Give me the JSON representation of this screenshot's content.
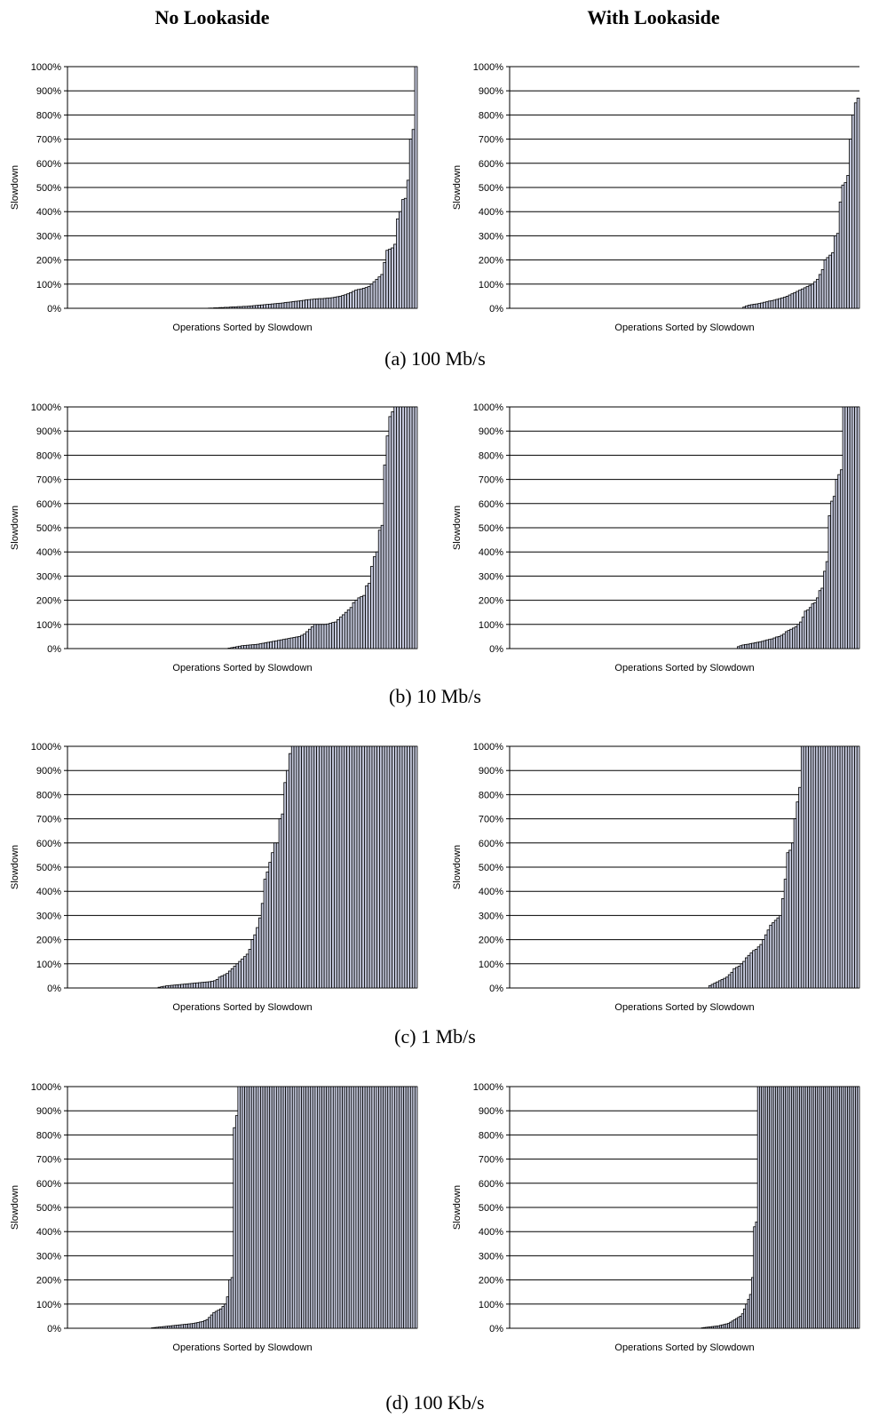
{
  "figure": {
    "column_titles": [
      "No Lookaside",
      "With Lookaside"
    ],
    "row_captions": [
      "(a) 100 Mb/s",
      "(b) 10 Mb/s",
      "(c) 1 Mb/s",
      "(d) 100 Kb/s"
    ]
  },
  "colors": {
    "bar_fill": "#c4c8dc",
    "bar_edge": "#000000",
    "grid": "#000000"
  },
  "chart_data": [
    {
      "type": "bar",
      "row": "(a) 100 Mb/s",
      "column": "No Lookaside",
      "xlabel": "Operations Sorted by Slowdown",
      "ylabel": "Slowdown",
      "ylim": [
        0,
        1000
      ],
      "yticks": [
        0,
        100,
        200,
        300,
        400,
        500,
        600,
        700,
        800,
        900,
        1000
      ],
      "ytick_suffix": "%",
      "grid": true,
      "values": [
        0,
        0,
        0,
        0,
        0,
        0,
        0,
        0,
        0,
        0,
        0,
        0,
        0,
        0,
        0,
        0,
        0,
        0,
        0,
        0,
        0,
        0,
        0,
        0,
        0,
        0,
        0,
        0,
        0,
        0,
        0,
        0,
        0,
        0,
        0,
        0,
        0,
        0,
        0,
        0,
        0,
        0,
        0,
        0,
        0,
        0,
        0,
        0,
        0,
        0,
        0,
        0,
        0,
        0,
        1,
        1,
        2,
        2,
        3,
        3,
        4,
        4,
        5,
        6,
        6,
        7,
        7,
        8,
        8,
        9,
        10,
        11,
        12,
        13,
        14,
        15,
        16,
        17,
        18,
        19,
        20,
        21,
        22,
        24,
        25,
        26,
        28,
        29,
        30,
        32,
        33,
        35,
        36,
        37,
        38,
        39,
        40,
        40,
        41,
        42,
        43,
        44,
        46,
        48,
        50,
        53,
        56,
        60,
        65,
        70,
        75,
        78,
        80,
        83,
        86,
        90,
        100,
        110,
        120,
        130,
        140,
        190,
        240,
        245,
        250,
        265,
        370,
        400,
        450,
        455,
        530,
        700,
        740,
        1000
      ]
    },
    {
      "type": "bar",
      "row": "(a) 100 Mb/s",
      "column": "With Lookaside",
      "xlabel": "Operations Sorted by Slowdown",
      "ylabel": "Slowdown",
      "ylim": [
        0,
        1000
      ],
      "yticks": [
        0,
        100,
        200,
        300,
        400,
        500,
        600,
        700,
        800,
        900,
        1000
      ],
      "ytick_suffix": "%",
      "grid": true,
      "values": [
        0,
        0,
        0,
        0,
        0,
        0,
        0,
        0,
        0,
        0,
        0,
        0,
        0,
        0,
        0,
        0,
        0,
        0,
        0,
        0,
        0,
        0,
        0,
        0,
        0,
        0,
        0,
        0,
        0,
        0,
        0,
        0,
        0,
        0,
        0,
        0,
        0,
        0,
        0,
        0,
        0,
        0,
        0,
        0,
        0,
        0,
        0,
        0,
        0,
        0,
        0,
        0,
        0,
        0,
        0,
        0,
        0,
        0,
        0,
        0,
        0,
        0,
        0,
        0,
        0,
        0,
        0,
        0,
        0,
        0,
        0,
        0,
        0,
        0,
        0,
        0,
        0,
        0,
        0,
        0,
        0,
        0,
        0,
        0,
        0,
        0,
        0,
        0,
        0,
        0,
        0,
        0,
        5,
        10,
        13,
        15,
        17,
        18,
        20,
        22,
        25,
        27,
        30,
        32,
        34,
        37,
        40,
        43,
        46,
        50,
        55,
        60,
        65,
        70,
        75,
        80,
        85,
        90,
        95,
        100,
        110,
        120,
        140,
        160,
        200,
        210,
        220,
        230,
        300,
        310,
        440,
        510,
        520,
        550,
        700,
        800,
        850,
        870
      ]
    },
    {
      "type": "bar",
      "row": "(b) 10 Mb/s",
      "column": "No Lookaside",
      "xlabel": "Operations Sorted by Slowdown",
      "ylabel": "Slowdown",
      "ylim": [
        0,
        1000
      ],
      "yticks": [
        0,
        100,
        200,
        300,
        400,
        500,
        600,
        700,
        800,
        900,
        1000
      ],
      "ytick_suffix": "%",
      "grid": true,
      "values": [
        0,
        0,
        0,
        0,
        0,
        0,
        0,
        0,
        0,
        0,
        0,
        0,
        0,
        0,
        0,
        0,
        0,
        0,
        0,
        0,
        0,
        0,
        0,
        0,
        0,
        0,
        0,
        0,
        0,
        0,
        0,
        0,
        0,
        0,
        0,
        0,
        0,
        0,
        0,
        0,
        0,
        0,
        0,
        0,
        0,
        0,
        0,
        0,
        0,
        0,
        0,
        0,
        0,
        0,
        0,
        0,
        0,
        0,
        0,
        0,
        0,
        0,
        2,
        4,
        6,
        8,
        10,
        12,
        13,
        14,
        15,
        16,
        17,
        18,
        20,
        22,
        24,
        26,
        28,
        30,
        32,
        34,
        36,
        38,
        40,
        42,
        44,
        46,
        48,
        50,
        55,
        60,
        70,
        80,
        90,
        100,
        100,
        100,
        100,
        100,
        102,
        105,
        108,
        110,
        120,
        130,
        140,
        150,
        160,
        170,
        190,
        200,
        210,
        215,
        220,
        260,
        270,
        340,
        380,
        400,
        490,
        510,
        760,
        880,
        960,
        980,
        1000,
        1000,
        1000,
        1000,
        1000,
        1000,
        1000,
        1000,
        1000
      ]
    },
    {
      "type": "bar",
      "row": "(b) 10 Mb/s",
      "column": "With Lookaside",
      "xlabel": "Operations Sorted by Slowdown",
      "ylabel": "Slowdown",
      "ylim": [
        0,
        1000
      ],
      "yticks": [
        0,
        100,
        200,
        300,
        400,
        500,
        600,
        700,
        800,
        900,
        1000
      ],
      "ytick_suffix": "%",
      "grid": true,
      "values": [
        0,
        0,
        0,
        0,
        0,
        0,
        0,
        0,
        0,
        0,
        0,
        0,
        0,
        0,
        0,
        0,
        0,
        0,
        0,
        0,
        0,
        0,
        0,
        0,
        0,
        0,
        0,
        0,
        0,
        0,
        0,
        0,
        0,
        0,
        0,
        0,
        0,
        0,
        0,
        0,
        0,
        0,
        0,
        0,
        0,
        0,
        0,
        0,
        0,
        0,
        0,
        0,
        0,
        0,
        0,
        0,
        0,
        0,
        0,
        0,
        0,
        0,
        0,
        0,
        0,
        0,
        0,
        0,
        0,
        0,
        0,
        0,
        0,
        0,
        0,
        0,
        0,
        0,
        0,
        0,
        0,
        0,
        0,
        0,
        0,
        0,
        0,
        0,
        0,
        0,
        0,
        0,
        0,
        0,
        0,
        8,
        12,
        15,
        17,
        18,
        20,
        22,
        24,
        26,
        28,
        30,
        33,
        36,
        38,
        40,
        44,
        48,
        50,
        55,
        60,
        70,
        75,
        80,
        85,
        90,
        100,
        110,
        130,
        155,
        160,
        170,
        185,
        190,
        210,
        240,
        250,
        320,
        360,
        550,
        610,
        630,
        700,
        720,
        740,
        1000,
        1000,
        1000,
        1000,
        1000,
        1000,
        1000
      ]
    },
    {
      "type": "bar",
      "row": "(c) 1 Mb/s",
      "column": "No Lookaside",
      "xlabel": "Operations Sorted by Slowdown",
      "ylabel": "Slowdown",
      "ylim": [
        0,
        1000
      ],
      "yticks": [
        0,
        100,
        200,
        300,
        400,
        500,
        600,
        700,
        800,
        900,
        1000
      ],
      "ytick_suffix": "%",
      "grid": true,
      "values": [
        0,
        0,
        0,
        0,
        0,
        0,
        0,
        0,
        0,
        0,
        0,
        0,
        0,
        0,
        0,
        0,
        0,
        0,
        0,
        0,
        0,
        0,
        0,
        0,
        0,
        0,
        0,
        0,
        0,
        0,
        0,
        0,
        0,
        0,
        0,
        0,
        3,
        5,
        7,
        9,
        10,
        11,
        12,
        13,
        14,
        15,
        16,
        17,
        18,
        19,
        20,
        21,
        22,
        23,
        24,
        25,
        26,
        28,
        30,
        35,
        45,
        50,
        55,
        60,
        70,
        80,
        90,
        100,
        110,
        120,
        130,
        140,
        160,
        200,
        220,
        250,
        290,
        350,
        450,
        480,
        520,
        560,
        600,
        600,
        700,
        720,
        850,
        900,
        970,
        1000,
        1000,
        1000,
        1000,
        1000,
        1000,
        1000,
        1000,
        1000,
        1000,
        1000,
        1000,
        1000,
        1000,
        1000,
        1000,
        1000,
        1000,
        1000,
        1000,
        1000,
        1000,
        1000,
        1000,
        1000,
        1000,
        1000,
        1000,
        1000,
        1000,
        1000,
        1000,
        1000,
        1000,
        1000,
        1000,
        1000,
        1000,
        1000,
        1000,
        1000,
        1000,
        1000,
        1000,
        1000,
        1000,
        1000,
        1000,
        1000,
        1000
      ]
    },
    {
      "type": "bar",
      "row": "(c) 1 Mb/s",
      "column": "With Lookaside",
      "xlabel": "Operations Sorted by Slowdown",
      "ylabel": "Slowdown",
      "ylim": [
        0,
        1000
      ],
      "yticks": [
        0,
        100,
        200,
        300,
        400,
        500,
        600,
        700,
        800,
        900,
        1000
      ],
      "ytick_suffix": "%",
      "grid": true,
      "values": [
        0,
        0,
        0,
        0,
        0,
        0,
        0,
        0,
        0,
        0,
        0,
        0,
        0,
        0,
        0,
        0,
        0,
        0,
        0,
        0,
        0,
        0,
        0,
        0,
        0,
        0,
        0,
        0,
        0,
        0,
        0,
        0,
        0,
        0,
        0,
        0,
        0,
        0,
        0,
        0,
        0,
        0,
        0,
        0,
        0,
        0,
        0,
        0,
        0,
        0,
        0,
        0,
        0,
        0,
        0,
        0,
        0,
        0,
        0,
        0,
        0,
        0,
        0,
        0,
        0,
        0,
        0,
        0,
        0,
        0,
        0,
        0,
        0,
        0,
        0,
        0,
        0,
        0,
        0,
        0,
        0,
        0,
        10,
        15,
        20,
        25,
        30,
        35,
        40,
        45,
        55,
        65,
        80,
        85,
        90,
        100,
        110,
        125,
        135,
        145,
        155,
        160,
        170,
        180,
        200,
        220,
        240,
        260,
        270,
        280,
        290,
        300,
        370,
        450,
        560,
        570,
        600,
        700,
        770,
        830,
        1000,
        1000,
        1000,
        1000,
        1000,
        1000,
        1000,
        1000,
        1000,
        1000,
        1000,
        1000,
        1000,
        1000,
        1000,
        1000,
        1000,
        1000,
        1000,
        1000,
        1000,
        1000,
        1000,
        1000
      ]
    },
    {
      "type": "bar",
      "row": "(d) 100 Kb/s",
      "column": "No Lookaside",
      "xlabel": "Operations Sorted by Slowdown",
      "ylabel": "Slowdown",
      "ylim": [
        0,
        1000
      ],
      "yticks": [
        0,
        100,
        200,
        300,
        400,
        500,
        600,
        700,
        800,
        900,
        1000
      ],
      "ytick_suffix": "%",
      "grid": true,
      "values": [
        0,
        0,
        0,
        0,
        0,
        0,
        0,
        0,
        0,
        0,
        0,
        0,
        0,
        0,
        0,
        0,
        0,
        0,
        0,
        0,
        0,
        0,
        0,
        0,
        0,
        0,
        0,
        0,
        0,
        0,
        0,
        0,
        0,
        0,
        0,
        0,
        0,
        2,
        3,
        4,
        5,
        6,
        7,
        8,
        9,
        10,
        11,
        12,
        13,
        14,
        15,
        16,
        17,
        18,
        19,
        20,
        22,
        24,
        26,
        28,
        32,
        36,
        45,
        55,
        65,
        70,
        75,
        80,
        90,
        100,
        130,
        200,
        210,
        830,
        880,
        1000,
        1000,
        1000,
        1000,
        1000,
        1000,
        1000,
        1000,
        1000,
        1000,
        1000,
        1000,
        1000,
        1000,
        1000,
        1000,
        1000,
        1000,
        1000,
        1000,
        1000,
        1000,
        1000,
        1000,
        1000,
        1000,
        1000,
        1000,
        1000,
        1000,
        1000,
        1000,
        1000,
        1000,
        1000,
        1000,
        1000,
        1000,
        1000,
        1000,
        1000,
        1000,
        1000,
        1000,
        1000,
        1000,
        1000,
        1000,
        1000,
        1000,
        1000,
        1000,
        1000,
        1000,
        1000,
        1000,
        1000,
        1000,
        1000,
        1000,
        1000,
        1000,
        1000,
        1000,
        1000,
        1000,
        1000,
        1000,
        1000,
        1000,
        1000,
        1000,
        1000,
        1000,
        1000,
        1000,
        1000,
        1000,
        1000
      ]
    },
    {
      "type": "bar",
      "row": "(d) 100 Kb/s",
      "column": "With Lookaside",
      "xlabel": "Operations Sorted by Slowdown",
      "ylabel": "Slowdown",
      "ylim": [
        0,
        1000
      ],
      "yticks": [
        0,
        100,
        200,
        300,
        400,
        500,
        600,
        700,
        800,
        900,
        1000
      ],
      "ytick_suffix": "%",
      "grid": true,
      "values": [
        0,
        0,
        0,
        0,
        0,
        0,
        0,
        0,
        0,
        0,
        0,
        0,
        0,
        0,
        0,
        0,
        0,
        0,
        0,
        0,
        0,
        0,
        0,
        0,
        0,
        0,
        0,
        0,
        0,
        0,
        0,
        0,
        0,
        0,
        0,
        0,
        0,
        0,
        0,
        0,
        0,
        0,
        0,
        0,
        0,
        0,
        0,
        0,
        0,
        0,
        0,
        0,
        0,
        0,
        0,
        0,
        0,
        0,
        0,
        0,
        0,
        0,
        0,
        0,
        0,
        0,
        0,
        0,
        0,
        0,
        0,
        0,
        0,
        0,
        0,
        0,
        0,
        0,
        0,
        0,
        0,
        0,
        0,
        0,
        0,
        0,
        0,
        0,
        0,
        0,
        0,
        0,
        0,
        0,
        0,
        0,
        2,
        3,
        4,
        5,
        6,
        7,
        8,
        9,
        10,
        12,
        14,
        16,
        18,
        20,
        25,
        30,
        35,
        40,
        45,
        50,
        60,
        80,
        100,
        120,
        140,
        210,
        420,
        440,
        1000,
        1000,
        1000,
        1000,
        1000,
        1000,
        1000,
        1000,
        1000,
        1000,
        1000,
        1000,
        1000,
        1000,
        1000,
        1000,
        1000,
        1000,
        1000,
        1000,
        1000,
        1000,
        1000,
        1000,
        1000,
        1000,
        1000,
        1000,
        1000,
        1000,
        1000,
        1000,
        1000,
        1000,
        1000,
        1000,
        1000,
        1000,
        1000,
        1000,
        1000,
        1000,
        1000,
        1000,
        1000,
        1000,
        1000,
        1000,
        1000,
        1000,
        1000
      ]
    }
  ]
}
